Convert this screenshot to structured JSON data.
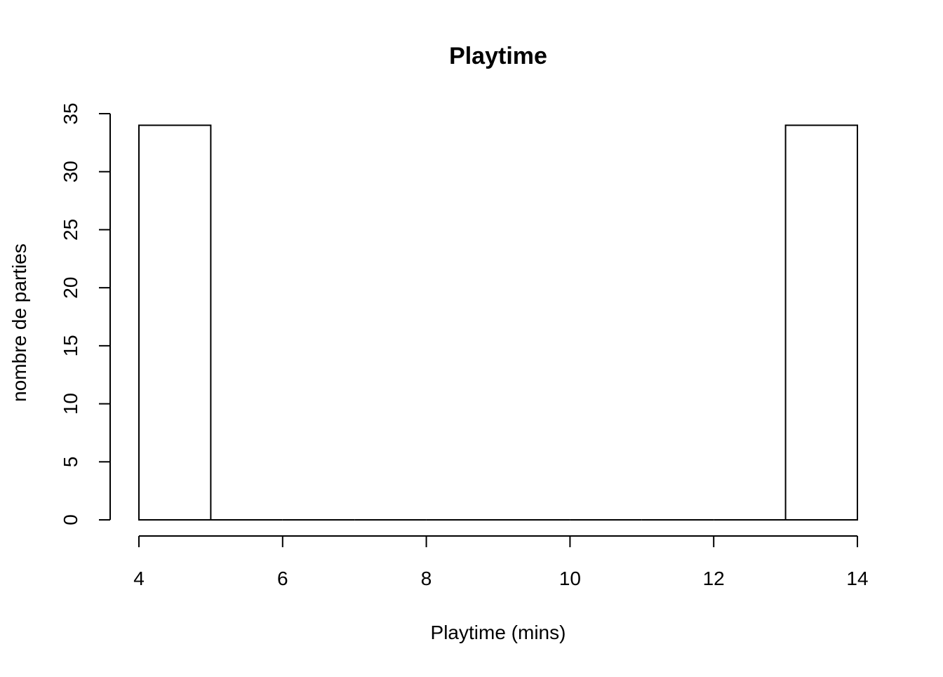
{
  "chart_data": {
    "type": "bar",
    "title": "Playtime",
    "xlabel": "Playtime (mins)",
    "ylabel": "nombre de parties",
    "x_ticks": [
      4,
      6,
      8,
      10,
      12,
      14
    ],
    "y_ticks": [
      0,
      5,
      10,
      15,
      20,
      25,
      30,
      35
    ],
    "xlim": [
      4,
      14
    ],
    "ylim": [
      0,
      35
    ],
    "bins": [
      {
        "x0": 4,
        "x1": 5,
        "count": 34
      },
      {
        "x0": 5,
        "x1": 6,
        "count": 0
      },
      {
        "x0": 6,
        "x1": 7,
        "count": 0
      },
      {
        "x0": 7,
        "x1": 8,
        "count": 0
      },
      {
        "x0": 8,
        "x1": 9,
        "count": 0
      },
      {
        "x0": 9,
        "x1": 10,
        "count": 0
      },
      {
        "x0": 10,
        "x1": 11,
        "count": 0
      },
      {
        "x0": 11,
        "x1": 12,
        "count": 0
      },
      {
        "x0": 12,
        "x1": 13,
        "count": 0
      },
      {
        "x0": 13,
        "x1": 14,
        "count": 34
      }
    ],
    "grid": false,
    "legend": "none"
  }
}
